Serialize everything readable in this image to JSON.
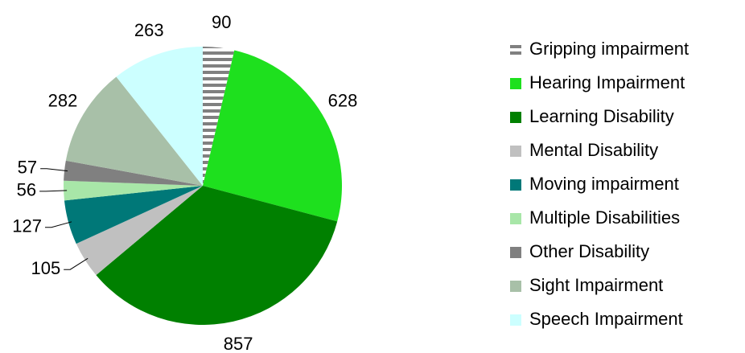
{
  "chart_data": {
    "type": "pie",
    "categories": [
      "Gripping impairment",
      "Hearing Impairment",
      "Learning Disability",
      "Mental Disability",
      "Moving impairment",
      "Multiple Disabilities",
      "Other Disability",
      "Sight Impairment",
      "Speech Impairment"
    ],
    "values": [
      90,
      628,
      857,
      105,
      127,
      56,
      57,
      282,
      263
    ],
    "colors": [
      "#808080",
      "#1ee01e",
      "#008000",
      "#c0c0c0",
      "#007878",
      "#a8e6a8",
      "#808080",
      "#a8c0a8",
      "#ccffff"
    ],
    "striped": [
      0
    ],
    "legend": "right"
  }
}
